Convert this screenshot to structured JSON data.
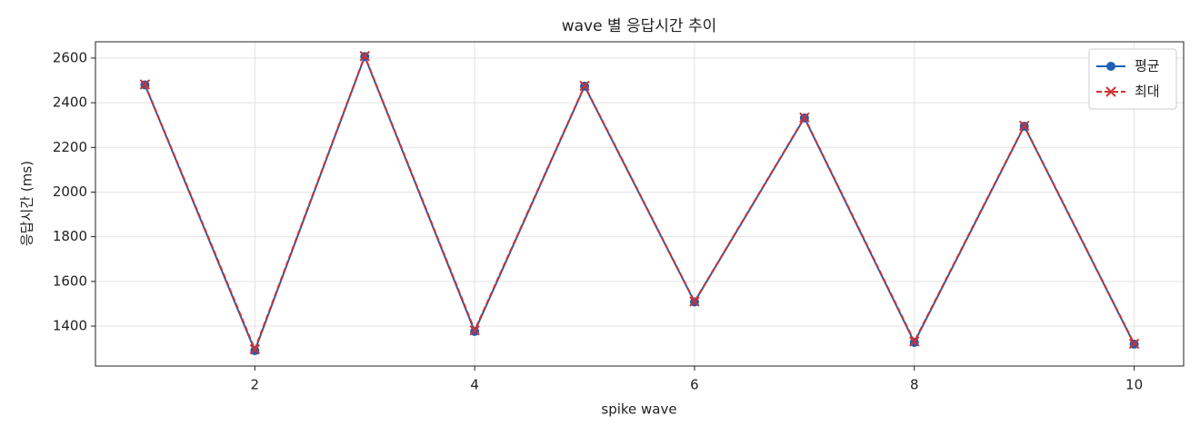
{
  "chart_data": {
    "type": "line",
    "title": "wave 별 응답시간 추이",
    "x_label": "spike wave",
    "y_label": "응답시간 (ms)",
    "x": [
      1,
      2,
      3,
      4,
      5,
      6,
      7,
      8,
      9,
      10
    ],
    "series": [
      {
        "name": "평균",
        "color": "#1f5fb4",
        "marker": "o",
        "linestyle": "solid",
        "values": [
          2480,
          1290,
          2607,
          1376,
          2474,
          1508,
          2332,
          1327,
          2295,
          1319
        ]
      },
      {
        "name": "최대",
        "color": "#d03030",
        "marker": "x",
        "linestyle": "dashed",
        "values": [
          2482,
          1296,
          2609,
          1381,
          2476,
          1510,
          2334,
          1331,
          2297,
          1321
        ]
      }
    ],
    "xlim": [
      0.55,
      10.45
    ],
    "ylim": [
      1221,
      2673
    ],
    "xticks": [
      2,
      4,
      6,
      8,
      10
    ],
    "yticks": [
      1400,
      1600,
      1800,
      2000,
      2200,
      2400,
      2600
    ],
    "grid": true,
    "legend": "upper right"
  }
}
